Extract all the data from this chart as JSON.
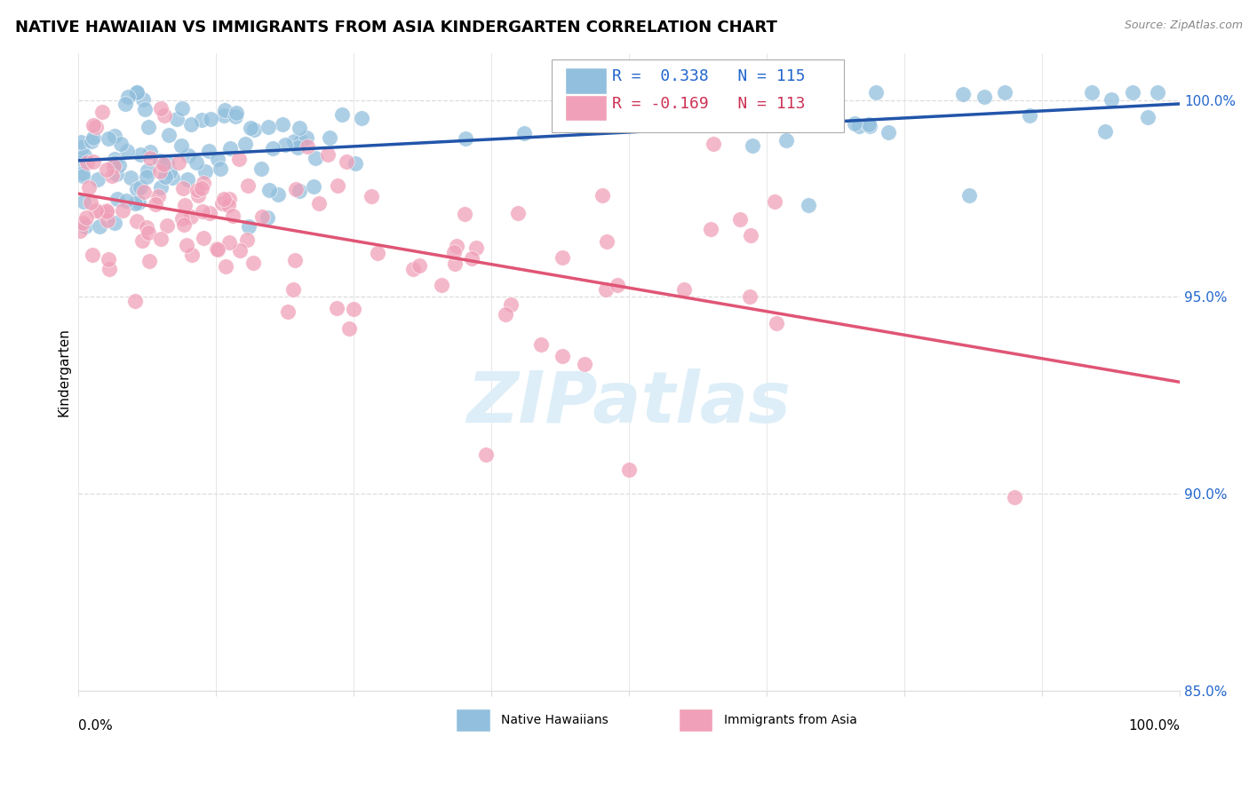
{
  "title": "NATIVE HAWAIIAN VS IMMIGRANTS FROM ASIA KINDERGARTEN CORRELATION CHART",
  "source": "Source: ZipAtlas.com",
  "ylabel": "Kindergarten",
  "xlim": [
    0.0,
    1.0
  ],
  "ylim": [
    0.855,
    1.012
  ],
  "yticks": [
    0.85,
    0.9,
    0.95,
    1.0
  ],
  "ytick_labels": [
    "85.0%",
    "90.0%",
    "95.0%",
    "100.0%"
  ],
  "blue_color": "#92bfdd",
  "pink_color": "#f0a0b8",
  "blue_line_color": "#2255aa",
  "pink_line_color": "#e05575",
  "R_blue": 0.338,
  "N_blue": 115,
  "R_pink": -0.169,
  "N_pink": 113,
  "legend_text_color_blue": "#2266cc",
  "legend_text_color_pink": "#cc3355",
  "watermark_color": "#ddeef8",
  "legend_label_blue": "Native Hawaiians",
  "legend_label_pink": "Immigrants from Asia",
  "grid_color": "#dddddd",
  "background_color": "#ffffff",
  "title_fontsize": 13,
  "axis_label_fontsize": 11,
  "tick_fontsize": 11,
  "legend_fontsize": 13
}
